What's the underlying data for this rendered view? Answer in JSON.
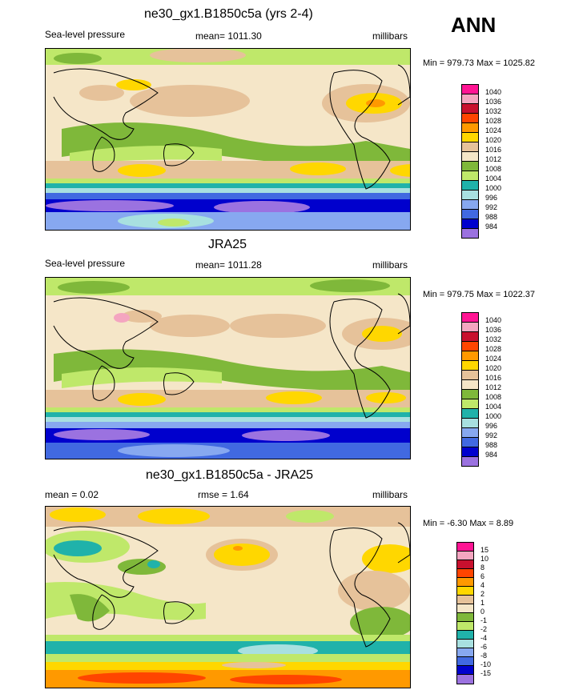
{
  "season": "ANN",
  "panels": [
    {
      "title": "ne30_gx1.B1850c5a (yrs 2-4)",
      "left": "Sea-level pressure",
      "center": "mean= 1011.30",
      "right": "millibars",
      "minmax": "Min = 979.73 Max = 1025.82",
      "legend_labels": [
        "1040",
        "1036",
        "1032",
        "1028",
        "1024",
        "1020",
        "1016",
        "1012",
        "1008",
        "1004",
        "1000",
        "996",
        "992",
        "988",
        "984"
      ]
    },
    {
      "title": "JRA25",
      "left": "Sea-level pressure",
      "center": "mean= 1011.28",
      "right": "millibars",
      "minmax": "Min = 979.75 Max = 1022.37",
      "legend_labels": [
        "1040",
        "1036",
        "1032",
        "1028",
        "1024",
        "1020",
        "1016",
        "1012",
        "1008",
        "1004",
        "1000",
        "996",
        "992",
        "988",
        "984"
      ]
    },
    {
      "title": "ne30_gx1.B1850c5a - JRA25",
      "left": "mean =   0.02",
      "center": "rmse =   1.64",
      "right": "millibars",
      "minmax": "Min =  -6.30 Max =   8.89",
      "legend_labels": [
        "15",
        "10",
        "8",
        "6",
        "4",
        "2",
        "1",
        "0",
        "-1",
        "-2",
        "-4",
        "-6",
        "-8",
        "-10",
        "-15"
      ]
    }
  ],
  "colors": {
    "pressure": [
      "#ff1493",
      "#f4a5c0",
      "#c8102e",
      "#ff4500",
      "#ff9900",
      "#ffd700",
      "#e6c29a",
      "#f5e6c8",
      "#7fb83a",
      "#bfe86a",
      "#20b2aa",
      "#a8e0e0",
      "#87a8f0",
      "#4169e1",
      "#0000cd",
      "#9b72e0"
    ],
    "diff": [
      "#ff1493",
      "#f4a5c0",
      "#c8102e",
      "#ff4500",
      "#ff9900",
      "#ffd700",
      "#e6c29a",
      "#f5e6c8",
      "#7fb83a",
      "#bfe86a",
      "#20b2aa",
      "#a8e0e0",
      "#87a8f0",
      "#4169e1",
      "#0000cd",
      "#9b72e0"
    ]
  }
}
